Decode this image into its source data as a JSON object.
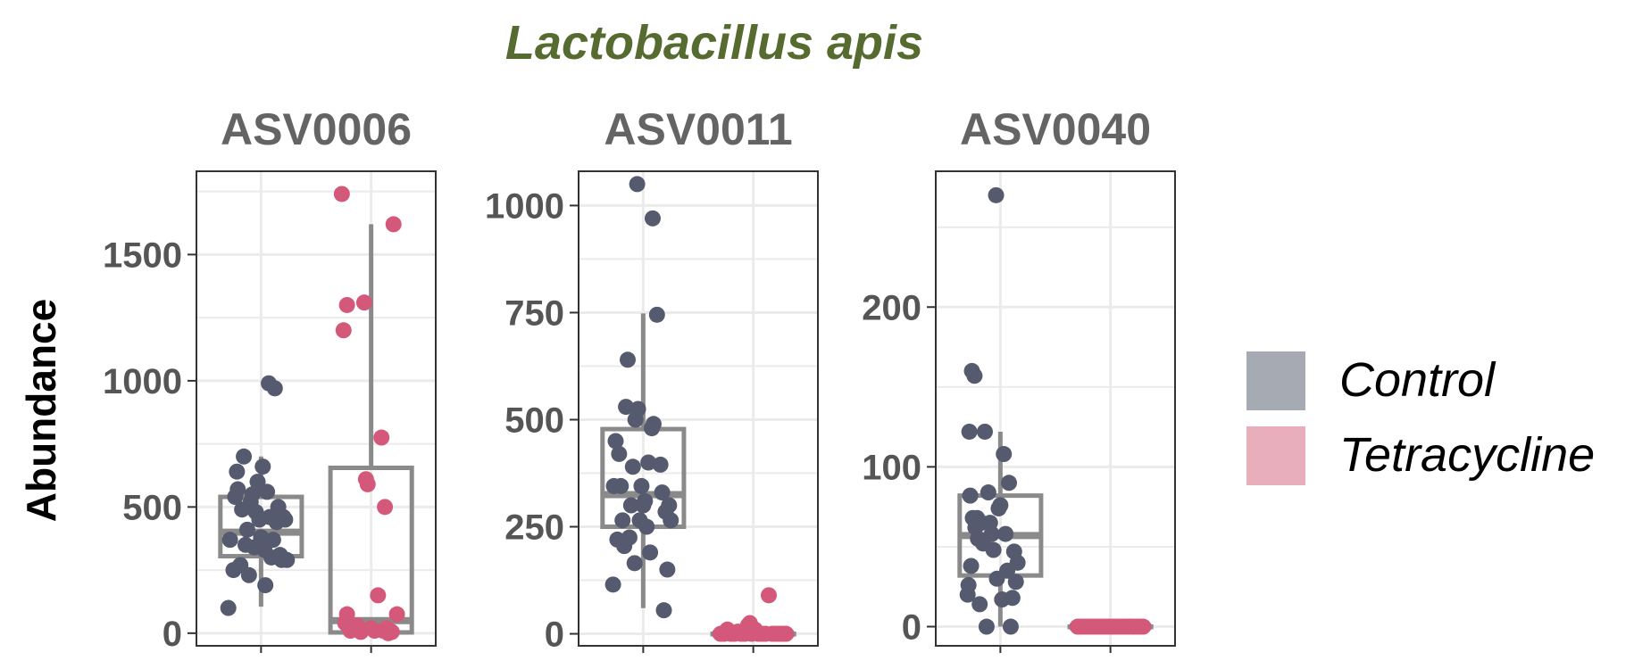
{
  "title": "Lactobacillus apis",
  "ylabel": "Abundance",
  "colors": {
    "title": "#556b2f",
    "control_point": "#565a6e",
    "tetracycline_point": "#d4587a",
    "control_legend": "#a6aab3",
    "tetracycline_legend": "#e8aebb",
    "box": "#8a8a8a",
    "grid": "#ebebeb",
    "panel_border": "#333333"
  },
  "legend": {
    "position": "right",
    "items": [
      {
        "label": "Control",
        "color": "#a6aab3"
      },
      {
        "label": "Tetracycline",
        "color": "#e8aebb"
      }
    ]
  },
  "chart_data": [
    {
      "type": "box+jitter",
      "strip": "ASV0006",
      "ylim": [
        -50,
        1830
      ],
      "yticks": [
        0,
        500,
        1000,
        1500
      ],
      "ytick_labels": [
        "0",
        "500",
        "1000",
        "1500"
      ],
      "grid": true,
      "groups": [
        {
          "name": "Control",
          "box": {
            "min": 105,
            "q1": 305,
            "median": 400,
            "q3": 540,
            "max": 700
          },
          "points": [
            [
              -0.38,
              100
            ],
            [
              -0.36,
              370
            ],
            [
              -0.32,
              250
            ],
            [
              -0.3,
              540
            ],
            [
              -0.28,
              640
            ],
            [
              -0.27,
              570
            ],
            [
              -0.24,
              270
            ],
            [
              -0.22,
              490
            ],
            [
              -0.2,
              700
            ],
            [
              -0.18,
              350
            ],
            [
              -0.16,
              410
            ],
            [
              -0.14,
              230
            ],
            [
              -0.12,
              520
            ],
            [
              -0.1,
              550
            ],
            [
              -0.08,
              340
            ],
            [
              -0.06,
              480
            ],
            [
              -0.04,
              600
            ],
            [
              -0.02,
              450
            ],
            [
              0.0,
              380
            ],
            [
              0.02,
              660
            ],
            [
              0.04,
              330
            ],
            [
              0.05,
              190
            ],
            [
              0.07,
              560
            ],
            [
              0.09,
              990
            ],
            [
              0.1,
              460
            ],
            [
              0.12,
              300
            ],
            [
              0.14,
              370
            ],
            [
              0.16,
              970
            ],
            [
              0.18,
              440
            ],
            [
              0.2,
              500
            ],
            [
              0.22,
              310
            ],
            [
              0.24,
              290
            ],
            [
              0.26,
              460
            ],
            [
              0.28,
              450
            ],
            [
              0.3,
              290
            ]
          ]
        },
        {
          "name": "Tetracycline",
          "box": {
            "min": 0,
            "q1": 3,
            "median": 50,
            "q3": 655,
            "max": 1620
          },
          "points": [
            [
              -0.34,
              1740
            ],
            [
              -0.32,
              1200
            ],
            [
              -0.28,
              1300
            ],
            [
              -0.3,
              40
            ],
            [
              -0.28,
              75
            ],
            [
              -0.24,
              10
            ],
            [
              -0.2,
              15
            ],
            [
              -0.16,
              30
            ],
            [
              -0.12,
              5
            ],
            [
              -0.08,
              1310
            ],
            [
              -0.06,
              610
            ],
            [
              -0.04,
              590
            ],
            [
              0.0,
              20
            ],
            [
              0.04,
              10
            ],
            [
              0.08,
              150
            ],
            [
              0.12,
              775
            ],
            [
              0.14,
              10
            ],
            [
              0.16,
              500
            ],
            [
              0.18,
              20
            ],
            [
              0.2,
              0
            ],
            [
              0.24,
              5
            ],
            [
              0.26,
              1620
            ],
            [
              0.3,
              75
            ]
          ]
        }
      ]
    },
    {
      "type": "box+jitter",
      "strip": "ASV0011",
      "ylim": [
        -28,
        1080
      ],
      "yticks": [
        0,
        250,
        500,
        750,
        1000
      ],
      "ytick_labels": [
        "0",
        "250",
        "500",
        "750",
        "1000"
      ],
      "grid": true,
      "groups": [
        {
          "name": "Control",
          "box": {
            "min": 60,
            "q1": 250,
            "median": 325,
            "q3": 478,
            "max": 748
          },
          "points": [
            [
              -0.35,
              115
            ],
            [
              -0.34,
              345
            ],
            [
              -0.32,
              450
            ],
            [
              -0.3,
              220
            ],
            [
              -0.28,
              420
            ],
            [
              -0.26,
              345
            ],
            [
              -0.24,
              265
            ],
            [
              -0.22,
              205
            ],
            [
              -0.2,
              530
            ],
            [
              -0.18,
              640
            ],
            [
              -0.16,
              225
            ],
            [
              -0.14,
              300
            ],
            [
              -0.12,
              390
            ],
            [
              -0.1,
              165
            ],
            [
              -0.09,
              500
            ],
            [
              -0.07,
              1050
            ],
            [
              -0.06,
              525
            ],
            [
              -0.04,
              265
            ],
            [
              -0.02,
              345
            ],
            [
              0.0,
              300
            ],
            [
              0.02,
              310
            ],
            [
              0.04,
              250
            ],
            [
              0.06,
              400
            ],
            [
              0.08,
              190
            ],
            [
              0.1,
              480
            ],
            [
              0.11,
              970
            ],
            [
              0.12,
              490
            ],
            [
              0.16,
              745
            ],
            [
              0.2,
              395
            ],
            [
              0.22,
              330
            ],
            [
              0.24,
              55
            ],
            [
              0.26,
              285
            ],
            [
              0.28,
              150
            ],
            [
              0.3,
              300
            ],
            [
              0.32,
              265
            ]
          ]
        },
        {
          "name": "Tetracycline",
          "box": {
            "min": 0,
            "q1": 0,
            "median": 0,
            "q3": 0,
            "max": 0
          },
          "points": [
            [
              -0.38,
              0
            ],
            [
              -0.34,
              0
            ],
            [
              -0.3,
              10
            ],
            [
              -0.26,
              0
            ],
            [
              -0.22,
              0
            ],
            [
              -0.18,
              5
            ],
            [
              -0.14,
              0
            ],
            [
              -0.1,
              0
            ],
            [
              -0.06,
              20
            ],
            [
              -0.04,
              25
            ],
            [
              -0.02,
              0
            ],
            [
              0.02,
              10
            ],
            [
              0.06,
              0
            ],
            [
              0.1,
              0
            ],
            [
              0.14,
              0
            ],
            [
              0.18,
              90
            ],
            [
              0.22,
              0
            ],
            [
              0.26,
              0
            ],
            [
              0.3,
              0
            ],
            [
              0.34,
              0
            ],
            [
              0.38,
              0
            ]
          ]
        }
      ]
    },
    {
      "type": "box+jitter",
      "strip": "ASV0040",
      "ylim": [
        -12,
        285
      ],
      "yticks": [
        0,
        100,
        200
      ],
      "ytick_labels": [
        "0",
        "100",
        "200"
      ],
      "grid": true,
      "groups": [
        {
          "name": "Control",
          "box": {
            "min": 0,
            "q1": 32,
            "median": 57,
            "q3": 82,
            "max": 122
          },
          "points": [
            [
              -0.38,
              20
            ],
            [
              -0.37,
              26
            ],
            [
              -0.36,
              122
            ],
            [
              -0.35,
              82
            ],
            [
              -0.34,
              38
            ],
            [
              -0.33,
              160
            ],
            [
              -0.32,
              68
            ],
            [
              -0.3,
              157
            ],
            [
              -0.29,
              62
            ],
            [
              -0.27,
              68
            ],
            [
              -0.26,
              55
            ],
            [
              -0.24,
              14
            ],
            [
              -0.22,
              65
            ],
            [
              -0.2,
              52
            ],
            [
              -0.18,
              122
            ],
            [
              -0.16,
              0
            ],
            [
              -0.14,
              84
            ],
            [
              -0.12,
              65
            ],
            [
              -0.1,
              58
            ],
            [
              -0.08,
              48
            ],
            [
              -0.05,
              270
            ],
            [
              -0.04,
              30
            ],
            [
              -0.02,
              74
            ],
            [
              0.0,
              76
            ],
            [
              0.02,
              17
            ],
            [
              0.04,
              108
            ],
            [
              0.06,
              58
            ],
            [
              0.08,
              35
            ],
            [
              0.1,
              90
            ],
            [
              0.12,
              0
            ],
            [
              0.14,
              18
            ],
            [
              0.16,
              47
            ],
            [
              0.18,
              28
            ],
            [
              0.2,
              40
            ]
          ]
        },
        {
          "name": "Tetracycline",
          "box": {
            "min": 0,
            "q1": 0,
            "median": 0,
            "q3": 0,
            "max": 0
          },
          "points": [
            [
              -0.38,
              0
            ],
            [
              -0.34,
              0
            ],
            [
              -0.3,
              0
            ],
            [
              -0.26,
              0
            ],
            [
              -0.22,
              0
            ],
            [
              -0.18,
              0
            ],
            [
              -0.14,
              0
            ],
            [
              -0.1,
              0
            ],
            [
              -0.06,
              0
            ],
            [
              -0.02,
              0
            ],
            [
              0.02,
              0
            ],
            [
              0.06,
              0
            ],
            [
              0.1,
              0
            ],
            [
              0.14,
              0
            ],
            [
              0.18,
              0
            ],
            [
              0.22,
              0
            ],
            [
              0.26,
              0
            ],
            [
              0.3,
              0
            ],
            [
              0.34,
              0
            ],
            [
              0.38,
              0
            ]
          ]
        }
      ]
    }
  ]
}
